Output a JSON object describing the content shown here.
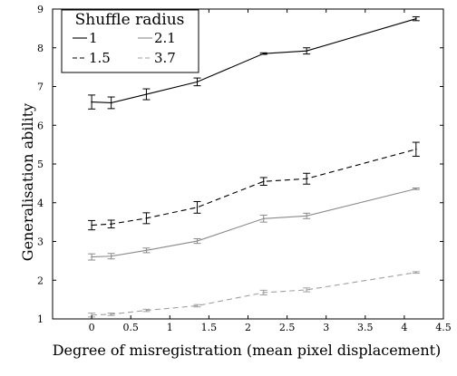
{
  "chart_data": {
    "type": "line",
    "xlabel": "Degree of misregistration (mean pixel displacement)",
    "ylabel": "Generalisation ability",
    "xlim": [
      -0.5,
      4.5
    ],
    "ylim": [
      1,
      9
    ],
    "xticks": [
      0,
      0.5,
      1,
      1.5,
      2,
      2.5,
      3,
      3.5,
      4,
      4.5
    ],
    "yticks": [
      1,
      2,
      3,
      4,
      5,
      6,
      7,
      8,
      9
    ],
    "xtick_labels": [
      "0",
      "0.5",
      "1",
      "1.5",
      "2",
      "2.5",
      "3",
      "3.5",
      "4",
      "4.5"
    ],
    "ytick_labels": [
      "1",
      "2",
      "3",
      "4",
      "5",
      "6",
      "7",
      "8",
      "9"
    ],
    "grid": false,
    "legend": {
      "title": "Shuffle radius",
      "placement": "top-left",
      "entries": [
        "1",
        "2.1",
        "1.5",
        "3.7"
      ]
    },
    "x": [
      0,
      0.25,
      0.7,
      1.35,
      2.2,
      2.75,
      4.15
    ],
    "series": [
      {
        "name": "1",
        "color": "#000000",
        "style": "solid",
        "values": [
          6.6,
          6.58,
          6.8,
          7.12,
          7.85,
          7.92,
          8.75
        ],
        "errors": [
          0.18,
          0.15,
          0.14,
          0.1,
          0.02,
          0.08,
          0.05
        ]
      },
      {
        "name": "1.5",
        "color": "#000000",
        "style": "dashed",
        "values": [
          3.42,
          3.45,
          3.6,
          3.88,
          4.55,
          4.62,
          5.38
        ],
        "errors": [
          0.12,
          0.1,
          0.14,
          0.15,
          0.1,
          0.14,
          0.18
        ]
      },
      {
        "name": "2.1",
        "color": "#8a8a8a",
        "style": "solid",
        "values": [
          2.6,
          2.62,
          2.77,
          3.01,
          3.59,
          3.66,
          4.36
        ],
        "errors": [
          0.08,
          0.07,
          0.06,
          0.06,
          0.09,
          0.07,
          0.02
        ]
      },
      {
        "name": "3.7",
        "color": "#a0a0a0",
        "style": "dashed",
        "values": [
          1.1,
          1.12,
          1.22,
          1.34,
          1.68,
          1.75,
          2.2
        ],
        "errors": [
          0.05,
          0.03,
          0.03,
          0.03,
          0.06,
          0.05,
          0.02
        ]
      }
    ]
  }
}
